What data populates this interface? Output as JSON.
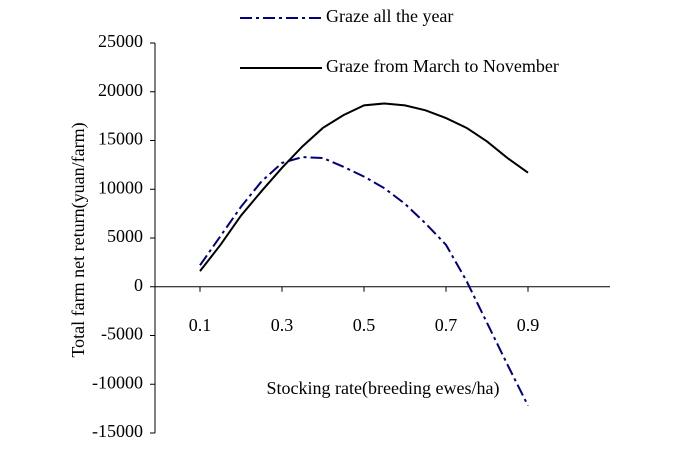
{
  "chart_data": {
    "type": "line",
    "x_label": "Stocking rate(breeding ewes/ha)",
    "y_label": "Total farm net return(yuan/farm)",
    "x": [
      0.1,
      0.15,
      0.2,
      0.25,
      0.3,
      0.35,
      0.4,
      0.45,
      0.5,
      0.55,
      0.6,
      0.65,
      0.7,
      0.75,
      0.8,
      0.85,
      0.9
    ],
    "series": [
      {
        "name": "Graze all the year",
        "color": "#000080",
        "dash": "dashdot",
        "values": [
          2200,
          5200,
          8200,
          10800,
          12700,
          13300,
          13200,
          12300,
          11300,
          10100,
          8500,
          6500,
          4300,
          600,
          -3700,
          -8000,
          -12200
        ]
      },
      {
        "name": "Graze from March to November",
        "color": "#000000",
        "dash": "solid",
        "values": [
          1600,
          4300,
          7300,
          9800,
          12200,
          14400,
          16300,
          17600,
          18600,
          18800,
          18600,
          18100,
          17300,
          16300,
          14900,
          13200,
          11700
        ]
      }
    ],
    "xlim": [
      0,
      1.1
    ],
    "xticks": [
      0.1,
      0.3,
      0.5,
      0.7,
      0.9
    ],
    "ylim": [
      -15000,
      25000
    ],
    "yticks": [
      -15000,
      -10000,
      -5000,
      0,
      5000,
      10000,
      15000,
      20000,
      25000
    ],
    "grid": false,
    "legend": "top"
  }
}
